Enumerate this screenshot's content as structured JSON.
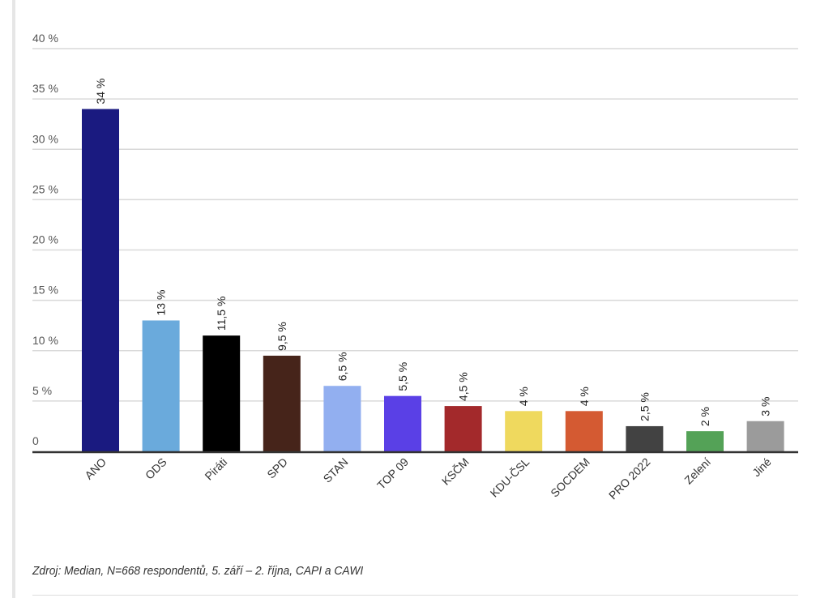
{
  "chart_data": {
    "type": "bar",
    "title": "",
    "xlabel": "",
    "ylabel": "",
    "ylim": [
      0,
      40
    ],
    "yticks": [
      0,
      5,
      10,
      15,
      20,
      25,
      30,
      35,
      40
    ],
    "ytick_labels": [
      "0",
      "5 %",
      "10 %",
      "15 %",
      "20 %",
      "25 %",
      "30 %",
      "35 %",
      "40 %"
    ],
    "grid": true,
    "legend": "none",
    "categories": [
      "ANO",
      "ODS",
      "Piráti",
      "SPD",
      "STAN",
      "TOP 09",
      "KSČM",
      "KDU-ČSL",
      "SOCDEM",
      "PRO 2022",
      "Zelení",
      "Jiné"
    ],
    "values": [
      34,
      13,
      11.5,
      9.5,
      6.5,
      5.5,
      4.5,
      4,
      4,
      2.5,
      2,
      3
    ],
    "data_labels": [
      "34 %",
      "13 %",
      "11,5 %",
      "9,5 %",
      "6,5 %",
      "5,5 %",
      "4,5 %",
      "4 %",
      "4 %",
      "2,5 %",
      "2 %",
      "3 %"
    ],
    "colors": [
      "#1a1a80",
      "#6aaadc",
      "#000000",
      "#46241a",
      "#92aff0",
      "#5a40e6",
      "#a3292b",
      "#efd95e",
      "#d45a32",
      "#424242",
      "#54a257",
      "#9b9b9b"
    ],
    "source": "Zdroj: Median, N=668 respondentů, 5. září – 2. října, CAPI a CAWI"
  }
}
